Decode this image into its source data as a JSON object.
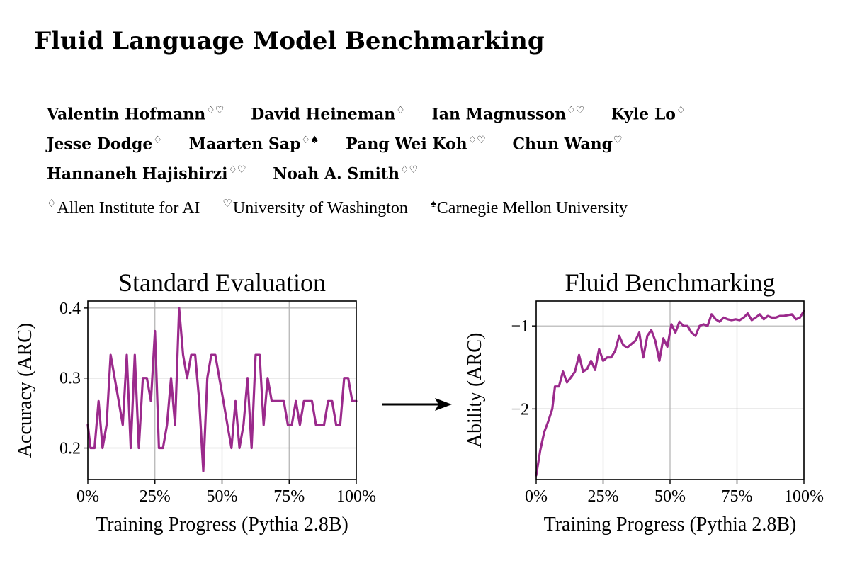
{
  "title": "Fluid Language Model Benchmarking",
  "authors": [
    [
      {
        "name": "Valentin Hofmann",
        "marks": "♢♡"
      },
      {
        "name": "David Heineman",
        "marks": "♢"
      },
      {
        "name": "Ian Magnusson",
        "marks": "♢♡"
      },
      {
        "name": "Kyle Lo",
        "marks": "♢"
      }
    ],
    [
      {
        "name": "Jesse Dodge",
        "marks": "♢"
      },
      {
        "name": "Maarten Sap",
        "marks": "♢♠"
      },
      {
        "name": "Pang Wei Koh",
        "marks": "♢♡"
      },
      {
        "name": "Chun Wang",
        "marks": "♡"
      }
    ],
    [
      {
        "name": "Hannaneh Hajishirzi",
        "marks": "♢♡"
      },
      {
        "name": "Noah A. Smith",
        "marks": "♢♡"
      }
    ]
  ],
  "affiliations": [
    {
      "mark": "♢",
      "name": "Allen Institute for AI"
    },
    {
      "mark": "♡",
      "name": "University of Washington"
    },
    {
      "mark": "♠",
      "name": "Carnegie Mellon University"
    }
  ],
  "colors": {
    "line": "#9b2a8c",
    "grid": "#b0b0b0",
    "arrow": "#000000"
  },
  "chart_data": [
    {
      "type": "line",
      "title": "Standard Evaluation",
      "xlabel": "Training Progress (Pythia 2.8B)",
      "ylabel": "Accuracy (ARC)",
      "xlim": [
        0,
        100
      ],
      "ylim": [
        0.155,
        0.41
      ],
      "xticks": [
        0,
        25,
        50,
        75,
        100
      ],
      "xtick_labels": [
        "0%",
        "25%",
        "50%",
        "75%",
        "100%"
      ],
      "yticks": [
        0.2,
        0.3,
        0.4
      ],
      "ytick_labels": [
        "0.2",
        "0.3",
        "0.4"
      ],
      "grid": true,
      "series": [
        {
          "name": "Pythia 2.8B",
          "x": [
            0,
            1,
            2.5,
            4,
            5.5,
            7,
            8.5,
            10,
            11.5,
            13,
            14.5,
            16,
            17.5,
            19,
            20.5,
            22,
            23.5,
            25,
            26.5,
            28,
            29.5,
            31,
            32.5,
            34,
            35.5,
            37,
            38.5,
            40,
            41.5,
            43,
            44.5,
            46,
            47.5,
            49,
            50.5,
            52,
            53.5,
            55,
            56.5,
            58,
            59.5,
            61,
            62.5,
            64,
            65.5,
            67,
            68.5,
            70,
            71.5,
            73,
            74.5,
            76,
            77.5,
            79,
            80.5,
            82,
            83.5,
            85,
            86.5,
            88,
            89.5,
            91,
            92.5,
            94,
            95.5,
            97,
            98.5,
            100
          ],
          "values": [
            0.233,
            0.2,
            0.2,
            0.267,
            0.2,
            0.233,
            0.333,
            0.3,
            0.267,
            0.233,
            0.333,
            0.2,
            0.333,
            0.2,
            0.3,
            0.3,
            0.267,
            0.367,
            0.2,
            0.2,
            0.233,
            0.3,
            0.233,
            0.4,
            0.333,
            0.3,
            0.333,
            0.333,
            0.267,
            0.167,
            0.3,
            0.333,
            0.333,
            0.3,
            0.267,
            0.233,
            0.2,
            0.267,
            0.2,
            0.233,
            0.3,
            0.2,
            0.333,
            0.333,
            0.233,
            0.3,
            0.267,
            0.267,
            0.267,
            0.267,
            0.233,
            0.233,
            0.267,
            0.233,
            0.267,
            0.267,
            0.267,
            0.233,
            0.233,
            0.233,
            0.267,
            0.267,
            0.233,
            0.233,
            0.3,
            0.3,
            0.267,
            0.267
          ]
        }
      ]
    },
    {
      "type": "line",
      "title": "Fluid Benchmarking",
      "xlabel": "Training Progress (Pythia 2.8B)",
      "ylabel": "Ability (ARC)",
      "xlim": [
        0,
        100
      ],
      "ylim": [
        -2.85,
        -0.7
      ],
      "xticks": [
        0,
        25,
        50,
        75,
        100
      ],
      "xtick_labels": [
        "0%",
        "25%",
        "50%",
        "75%",
        "100%"
      ],
      "yticks": [
        -1,
        -2
      ],
      "ytick_labels": [
        "−1",
        "−2"
      ],
      "grid": true,
      "series": [
        {
          "name": "Pythia 2.8B",
          "x": [
            0,
            1.5,
            3,
            4.5,
            6,
            7,
            8.5,
            10,
            11.5,
            13,
            14.5,
            16,
            17.5,
            19,
            20.5,
            22,
            23.5,
            25,
            26.5,
            28,
            29.5,
            31,
            32.5,
            34,
            35.5,
            37,
            38.5,
            40,
            41.5,
            43,
            44.5,
            46,
            47.5,
            49,
            50.5,
            52,
            53.5,
            55,
            56.5,
            58,
            59.5,
            61,
            62.5,
            64,
            65.5,
            67,
            68.5,
            70,
            71.5,
            73,
            74.5,
            76,
            77.5,
            79,
            80.5,
            82,
            83.5,
            85,
            86.5,
            88,
            89.5,
            91,
            92.5,
            94,
            95.5,
            97,
            98.5,
            100
          ],
          "values": [
            -2.8,
            -2.5,
            -2.28,
            -2.15,
            -2.0,
            -1.73,
            -1.73,
            -1.55,
            -1.68,
            -1.62,
            -1.55,
            -1.35,
            -1.55,
            -1.52,
            -1.42,
            -1.53,
            -1.28,
            -1.42,
            -1.38,
            -1.38,
            -1.3,
            -1.12,
            -1.23,
            -1.26,
            -1.22,
            -1.18,
            -1.08,
            -1.38,
            -1.12,
            -1.05,
            -1.18,
            -1.42,
            -1.15,
            -1.25,
            -0.98,
            -1.08,
            -0.95,
            -1.0,
            -1.0,
            -1.08,
            -1.12,
            -1.0,
            -0.98,
            -1.0,
            -0.86,
            -0.92,
            -0.95,
            -0.9,
            -0.92,
            -0.93,
            -0.92,
            -0.93,
            -0.9,
            -0.85,
            -0.93,
            -0.9,
            -0.86,
            -0.92,
            -0.88,
            -0.9,
            -0.9,
            -0.88,
            -0.88,
            -0.87,
            -0.86,
            -0.92,
            -0.9,
            -0.82
          ]
        }
      ]
    }
  ]
}
